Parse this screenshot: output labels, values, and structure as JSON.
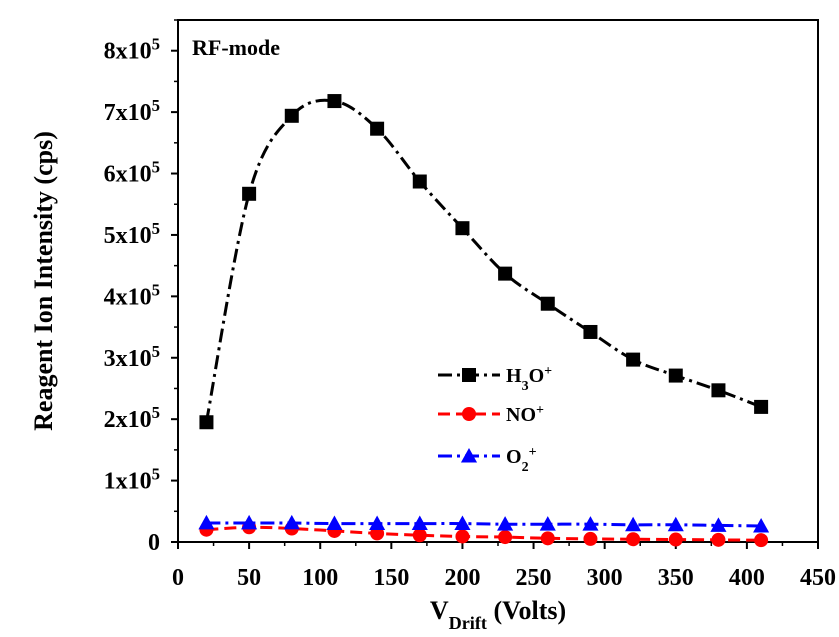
{
  "chart_data": {
    "type": "line",
    "annotation": "RF-mode",
    "xlabel": {
      "main": "V",
      "sub": "Drift",
      "rest": " (Volts)"
    },
    "ylabel": "Reagent Ion Intensity (cps)",
    "xlim": [
      0,
      450
    ],
    "ylim": [
      0,
      850000
    ],
    "x_ticks": [
      0,
      50,
      100,
      150,
      200,
      250,
      300,
      350,
      400,
      450
    ],
    "x_tick_labels": [
      "0",
      "50",
      "100",
      "150",
      "200",
      "250",
      "300",
      "350",
      "400",
      "450"
    ],
    "y_ticks": [
      {
        "value": 0,
        "base": "0",
        "exp": ""
      },
      {
        "value": 100000,
        "base": "1x10",
        "exp": "5"
      },
      {
        "value": 200000,
        "base": "2x10",
        "exp": "5"
      },
      {
        "value": 300000,
        "base": "3x10",
        "exp": "5"
      },
      {
        "value": 400000,
        "base": "4x10",
        "exp": "5"
      },
      {
        "value": 500000,
        "base": "5x10",
        "exp": "5"
      },
      {
        "value": 600000,
        "base": "6x10",
        "exp": "5"
      },
      {
        "value": 700000,
        "base": "7x10",
        "exp": "5"
      },
      {
        "value": 800000,
        "base": "8x10",
        "exp": "5"
      }
    ],
    "grid": false,
    "legend_position": "center-right",
    "x": [
      20,
      50,
      80,
      110,
      140,
      170,
      200,
      230,
      260,
      290,
      320,
      350,
      380,
      410
    ],
    "series": [
      {
        "name": "H3O+",
        "label_parts": [
          [
            "H",
            "n"
          ],
          [
            "3",
            "sub"
          ],
          [
            "O",
            "n"
          ],
          [
            "+",
            "sup"
          ]
        ],
        "color": "#000000",
        "marker": "square",
        "dash": "dashdot",
        "values": [
          195000,
          567000,
          694000,
          718000,
          673000,
          587000,
          511000,
          437000,
          388000,
          342000,
          297000,
          271000,
          247000,
          220000
        ]
      },
      {
        "name": "NO+",
        "label_parts": [
          [
            "NO",
            "n"
          ],
          [
            "+",
            "sup"
          ]
        ],
        "color": "#ff0000",
        "marker": "circle",
        "dash": "dash",
        "values": [
          20000,
          24000,
          22000,
          18000,
          14000,
          11000,
          9000,
          8000,
          6000,
          5000,
          4500,
          4000,
          3500,
          3000
        ]
      },
      {
        "name": "O2+",
        "label_parts": [
          [
            "O",
            "n"
          ],
          [
            "2",
            "sub"
          ],
          [
            "+",
            "sup"
          ]
        ],
        "color": "#0000ff",
        "marker": "triangle",
        "dash": "dashdot",
        "values": [
          31000,
          31000,
          31000,
          30000,
          30000,
          30000,
          30000,
          29000,
          29000,
          29000,
          28000,
          28000,
          27000,
          26000
        ]
      }
    ]
  }
}
